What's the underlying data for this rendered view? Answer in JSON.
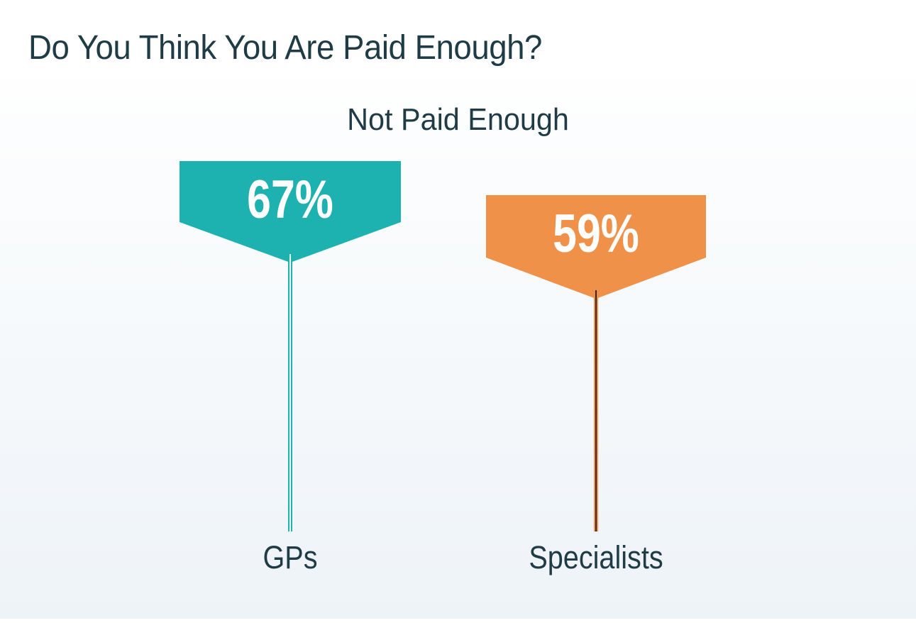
{
  "header": {
    "title": "Do You Think You Are Paid Enough?"
  },
  "chart_data": {
    "type": "bar",
    "variant": "pin-banner-markers",
    "title": "Do You Think You Are Paid Enough?",
    "subtitle": "Not Paid Enough",
    "categories": [
      "GPs",
      "Specialists"
    ],
    "values": [
      67,
      59
    ],
    "value_labels": [
      "67%",
      "59%"
    ],
    "unit": "%",
    "series_colors": [
      "#1db1af",
      "#f0914a"
    ],
    "value_text_color": "#ffffff",
    "label_text_color": "#1f3c46",
    "background": "linear-gradient #fefefe to #eef3f8",
    "grid": false,
    "legend_position": "none",
    "axis": "none"
  }
}
